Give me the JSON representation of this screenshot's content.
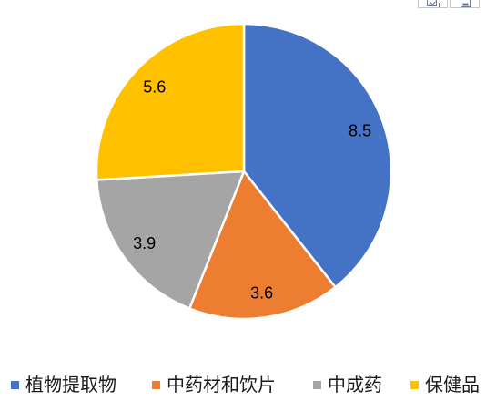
{
  "toolbar": {
    "buttons": [
      {
        "icon": "chart-add-element-icon"
      },
      {
        "icon": "chart-layout-icon"
      }
    ]
  },
  "chart_data": {
    "type": "pie",
    "categories": [
      "植物提取物",
      "中药材和饮片",
      "中成药",
      "保健品"
    ],
    "values": [
      8.5,
      3.6,
      3.9,
      5.6
    ],
    "colors": [
      "#4472C4",
      "#ED7D31",
      "#A5A5A5",
      "#FFC000"
    ],
    "data_labels_shown": true,
    "legend_position": "bottom"
  }
}
